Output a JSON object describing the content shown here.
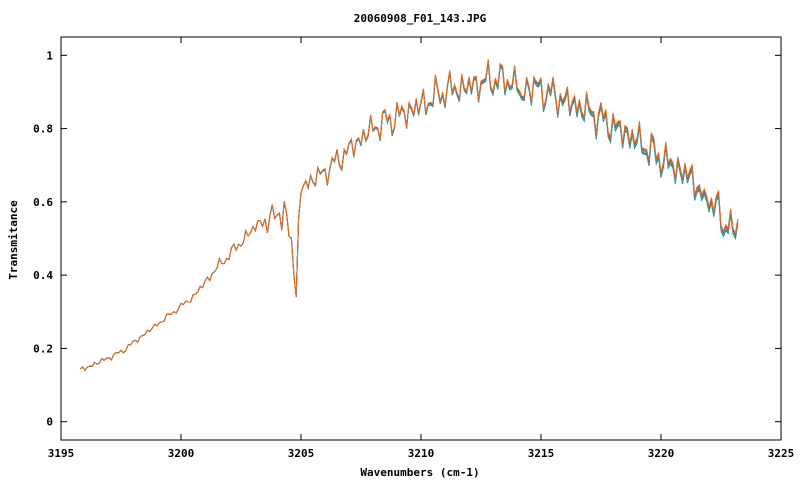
{
  "chart_data": {
    "type": "line",
    "title": "20060908_F01_143.JPG",
    "xlabel": "Wavenumbers (cm-1)",
    "ylabel": "Transmitance",
    "xlim": [
      3195,
      3225
    ],
    "ylim": [
      -0.05,
      1.05
    ],
    "x_ticks": [
      "3195",
      "3200",
      "3205",
      "3210",
      "3215",
      "3220",
      "3225"
    ],
    "y_ticks": [
      "0",
      "0.2",
      "0.4",
      "0.6",
      "0.8",
      "1"
    ],
    "grid": false,
    "legend": "none",
    "x_start": 3195.8,
    "x_end": 3223.2,
    "x_step": 0.1,
    "series_offsets": [
      0.0,
      0.006,
      0.012,
      0.018,
      0.024,
      0.03
    ],
    "series_colors": [
      "#1f77b4",
      "#2ca02c",
      "#17becf",
      "#9467bd",
      "#8c564b",
      "#e07020"
    ],
    "envelope_x": [
      3195.8,
      3196.5,
      3197.5,
      3198.5,
      3199.5,
      3200.5,
      3201.5,
      3202.5,
      3203.5,
      3204.3,
      3204.7,
      3205.0,
      3206.0,
      3207.0,
      3208.0,
      3209.0,
      3210.0,
      3211.0,
      3212.0,
      3213.0,
      3214.0,
      3215.0,
      3216.0,
      3217.0,
      3218.0,
      3219.0,
      3220.0,
      3221.0,
      3222.0,
      3222.5,
      3223.2
    ],
    "envelope_y": [
      0.14,
      0.16,
      0.19,
      0.24,
      0.29,
      0.34,
      0.42,
      0.49,
      0.56,
      0.59,
      0.47,
      0.64,
      0.68,
      0.74,
      0.8,
      0.83,
      0.86,
      0.9,
      0.91,
      0.93,
      0.92,
      0.9,
      0.87,
      0.84,
      0.8,
      0.76,
      0.71,
      0.67,
      0.61,
      0.56,
      0.51
    ],
    "dips": [
      {
        "x": 3204.8,
        "depth": 0.19
      },
      {
        "x": 3204.2,
        "depth": 0.06
      },
      {
        "x": 3203.6,
        "depth": 0.05
      },
      {
        "x": 3221.8,
        "depth": 0.06
      },
      {
        "x": 3222.6,
        "depth": 0.05
      },
      {
        "x": 3214.2,
        "depth": 0.06
      }
    ]
  }
}
